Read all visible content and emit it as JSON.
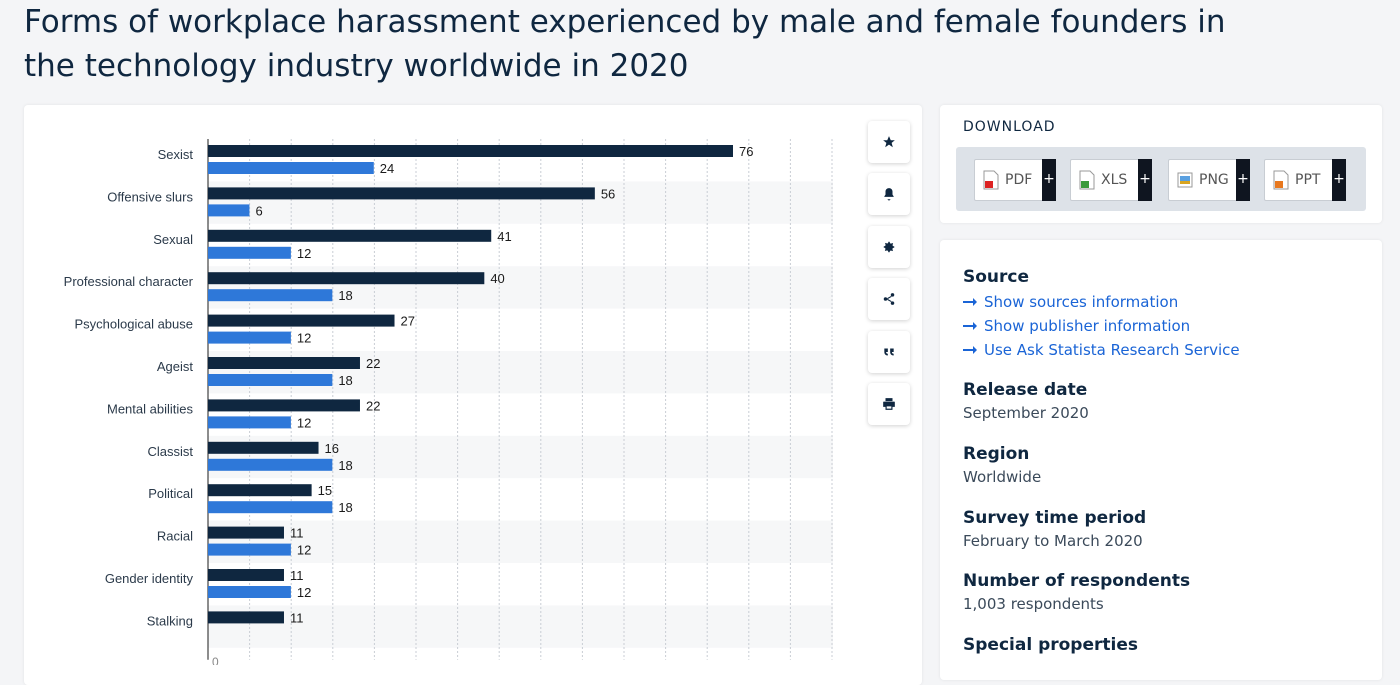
{
  "title": "Forms of workplace harassment experienced by male and female founders in the technology industry worldwide in 2020",
  "colors": {
    "male": "#0f2740",
    "female": "#2e78d9",
    "accent": "#1a64d6"
  },
  "toolbar": {
    "icons": [
      "star-icon",
      "bell-icon",
      "gear-icon",
      "share-icon",
      "quote-icon",
      "print-icon"
    ]
  },
  "download": {
    "title": "DOWNLOAD",
    "buttons": [
      {
        "label": "PDF",
        "plus": "+"
      },
      {
        "label": "XLS",
        "plus": "+"
      },
      {
        "label": "PNG",
        "plus": "+"
      },
      {
        "label": "PPT",
        "plus": "+"
      }
    ]
  },
  "info": {
    "source_label": "Source",
    "links": [
      "Show sources information",
      "Show publisher information",
      "Use Ask Statista Research Service"
    ],
    "release_label": "Release date",
    "release_value": "September 2020",
    "region_label": "Region",
    "region_value": "Worldwide",
    "survey_label": "Survey time period",
    "survey_value": "February to March 2020",
    "respondents_label": "Number of respondents",
    "respondents_value": "1,003 respondents",
    "special_label": "Special properties"
  },
  "chart_data": {
    "type": "bar",
    "orientation": "horizontal",
    "categories": [
      "Sexist",
      "Offensive slurs",
      "Sexual",
      "Professional character",
      "Psychological abuse",
      "Ageist",
      "Mental abilities",
      "Classist",
      "Political",
      "Racial",
      "Gender identity",
      "Stalking"
    ],
    "series": [
      {
        "values": [
          76,
          56,
          41,
          40,
          27,
          22,
          22,
          16,
          15,
          11,
          11,
          11
        ]
      },
      {
        "values": [
          24,
          6,
          12,
          18,
          12,
          18,
          12,
          18,
          18,
          12,
          12,
          null
        ]
      }
    ],
    "xlim": [
      0,
      76
    ],
    "x_tick_visible": "0",
    "grid": true
  }
}
